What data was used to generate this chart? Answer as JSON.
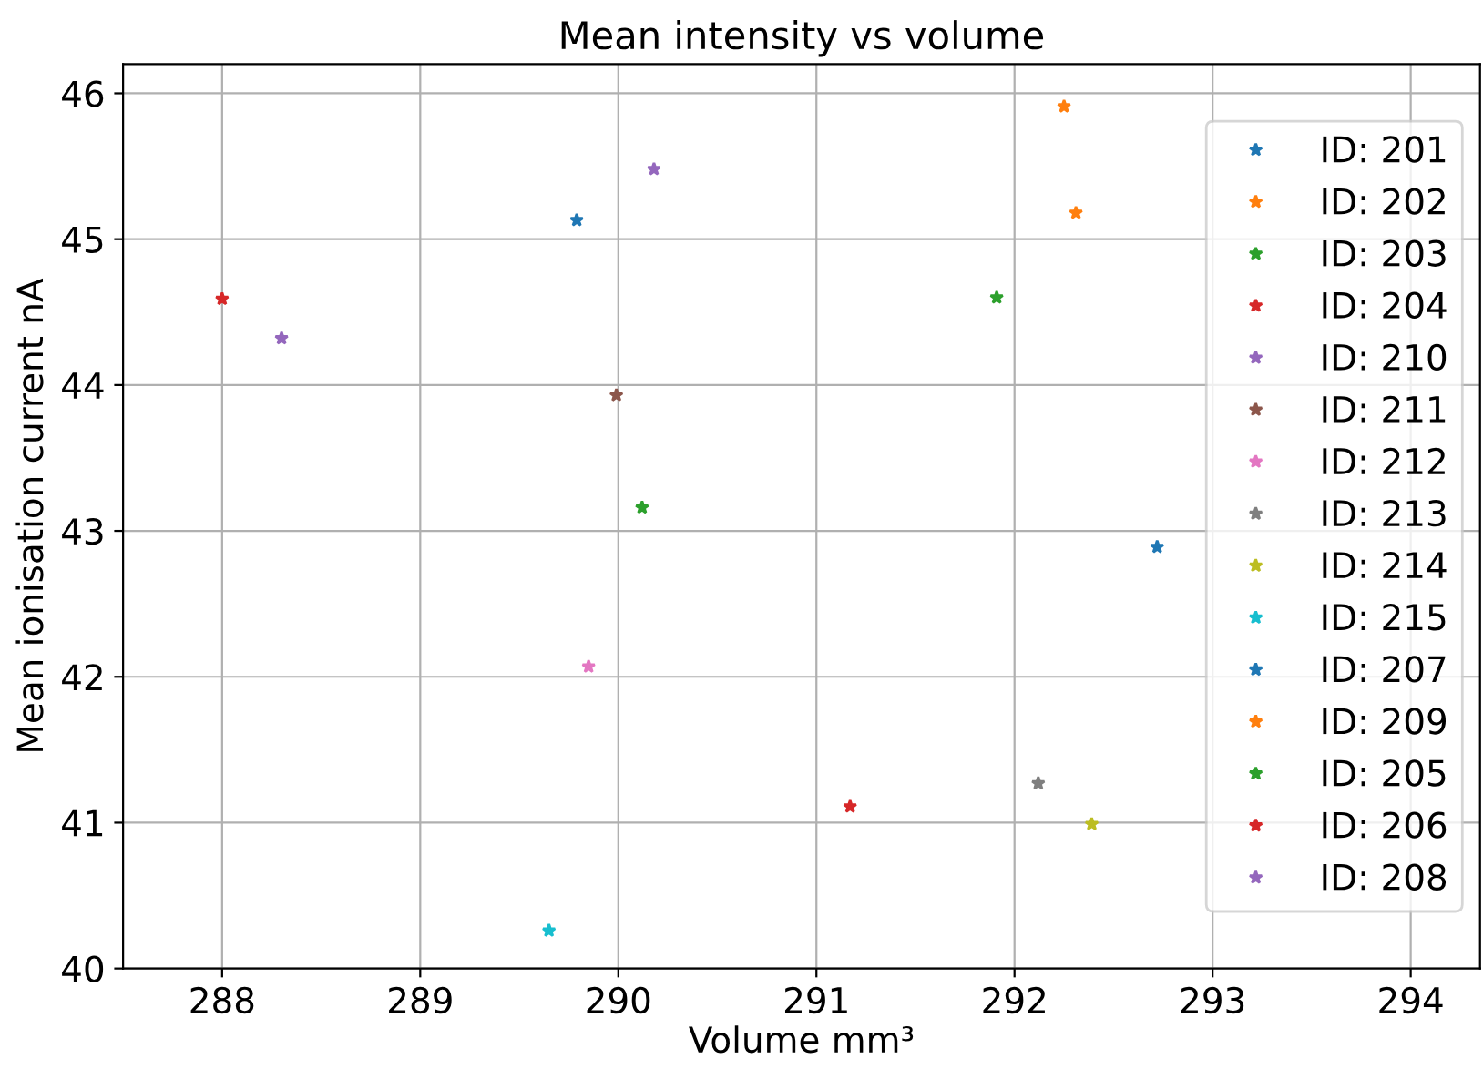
{
  "chart_data": {
    "type": "scatter",
    "title": "Mean intensity vs volume",
    "xlabel": "Volume mm³",
    "ylabel": "Mean ionisation current nA",
    "xlim": [
      287.5,
      294.35
    ],
    "xticks": [
      288,
      289,
      290,
      291,
      292,
      293,
      294
    ],
    "ylim": [
      40,
      46.2
    ],
    "yticks": [
      40,
      41,
      42,
      43,
      44,
      45,
      46
    ],
    "grid": true,
    "legend": "right",
    "marker": "star",
    "series": [
      {
        "name": "ID: 201",
        "color": "#1f77b4",
        "x": [
          292.72
        ],
        "values": [
          42.89
        ]
      },
      {
        "name": "ID: 202",
        "color": "#ff7f0e",
        "x": [
          292.25
        ],
        "values": [
          45.91
        ]
      },
      {
        "name": "ID: 203",
        "color": "#2ca02c",
        "x": [
          291.91
        ],
        "values": [
          44.6
        ]
      },
      {
        "name": "ID: 204",
        "color": "#d62728",
        "x": [
          288.0
        ],
        "values": [
          44.59
        ]
      },
      {
        "name": "ID: 210",
        "color": "#9467bd",
        "x": [
          290.18
        ],
        "values": [
          45.48
        ]
      },
      {
        "name": "ID: 211",
        "color": "#8c564b",
        "x": [
          289.99
        ],
        "values": [
          43.93
        ]
      },
      {
        "name": "ID: 212",
        "color": "#e377c2",
        "x": [
          289.85
        ],
        "values": [
          42.07
        ]
      },
      {
        "name": "ID: 213",
        "color": "#7f7f7f",
        "x": [
          292.12
        ],
        "values": [
          41.27
        ]
      },
      {
        "name": "ID: 214",
        "color": "#bcbd22",
        "x": [
          292.39
        ],
        "values": [
          40.99
        ]
      },
      {
        "name": "ID: 215",
        "color": "#17becf",
        "x": [
          289.65
        ],
        "values": [
          40.26
        ]
      },
      {
        "name": "ID: 207",
        "color": "#1f77b4",
        "x": [
          289.79
        ],
        "values": [
          45.13
        ]
      },
      {
        "name": "ID: 209",
        "color": "#ff7f0e",
        "x": [
          292.31
        ],
        "values": [
          45.18
        ]
      },
      {
        "name": "ID: 205",
        "color": "#2ca02c",
        "x": [
          290.12
        ],
        "values": [
          43.16
        ]
      },
      {
        "name": "ID: 206",
        "color": "#d62728",
        "x": [
          291.17
        ],
        "values": [
          41.11
        ]
      },
      {
        "name": "ID: 208",
        "color": "#9467bd",
        "x": [
          288.3
        ],
        "values": [
          44.32
        ]
      }
    ]
  }
}
